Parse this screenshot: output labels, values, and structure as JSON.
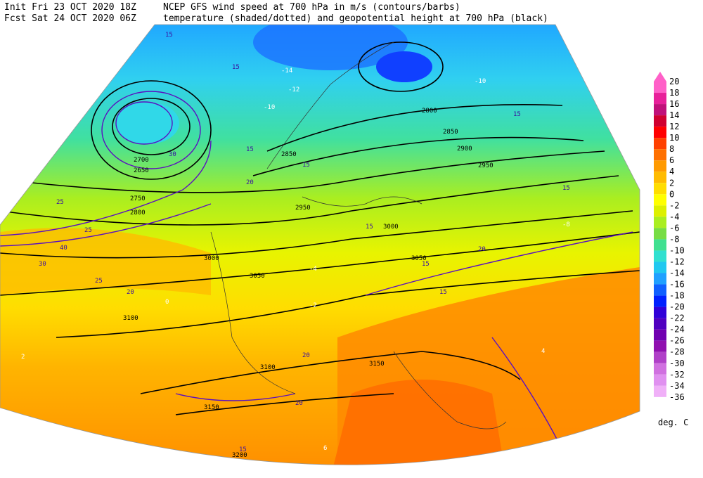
{
  "header": {
    "init": "Init  Fri 23 OCT 2020 18Z",
    "fcst": "Fcst Sat 24 OCT 2020 06Z",
    "line1": "NCEP GFS wind speed at 700 hPa in m/s (contours/barbs)",
    "line2": "temperature (shaded/dotted) and geopotential height at 700 hPa (black)"
  },
  "colorbar": {
    "levels": [
      20,
      18,
      16,
      14,
      12,
      10,
      8,
      6,
      4,
      2,
      0,
      -2,
      -4,
      -6,
      -8,
      -10,
      -12,
      -14,
      -16,
      -18,
      -20,
      -22,
      -24,
      -26,
      -28,
      -30,
      -32,
      -34,
      -36
    ],
    "colors": [
      "#ff60c8",
      "#e8209a",
      "#c0107a",
      "#d00030",
      "#ff0000",
      "#ff4000",
      "#ff7000",
      "#ff9a00",
      "#ffbb00",
      "#ffdd00",
      "#ffff00",
      "#ddf000",
      "#aaee20",
      "#77dd44",
      "#40e090",
      "#30e0d0",
      "#20c8f0",
      "#20a0ff",
      "#1060ff",
      "#0020ff",
      "#3000d8",
      "#5000c0",
      "#7000b0",
      "#9010b0",
      "#b040c8",
      "#d070e0",
      "#e090f0",
      "#f0b0f8"
    ],
    "unit": "deg. C"
  },
  "map": {
    "height_labels": [
      2850,
      2800,
      2900,
      2950,
      2850,
      2950,
      3000,
      3050,
      3050,
      3000,
      3100,
      3100,
      3150,
      3150,
      3200,
      2750,
      2700,
      2650,
      2800
    ],
    "wind_labels": [
      15,
      15,
      20,
      25,
      30,
      25,
      20,
      15,
      15,
      20,
      15,
      20,
      15,
      15,
      15,
      15,
      40,
      30,
      25,
      20,
      15
    ],
    "temp_labels": [
      -14,
      -12,
      -10,
      -10,
      -8,
      -4,
      -2,
      0,
      2,
      4,
      6
    ]
  }
}
